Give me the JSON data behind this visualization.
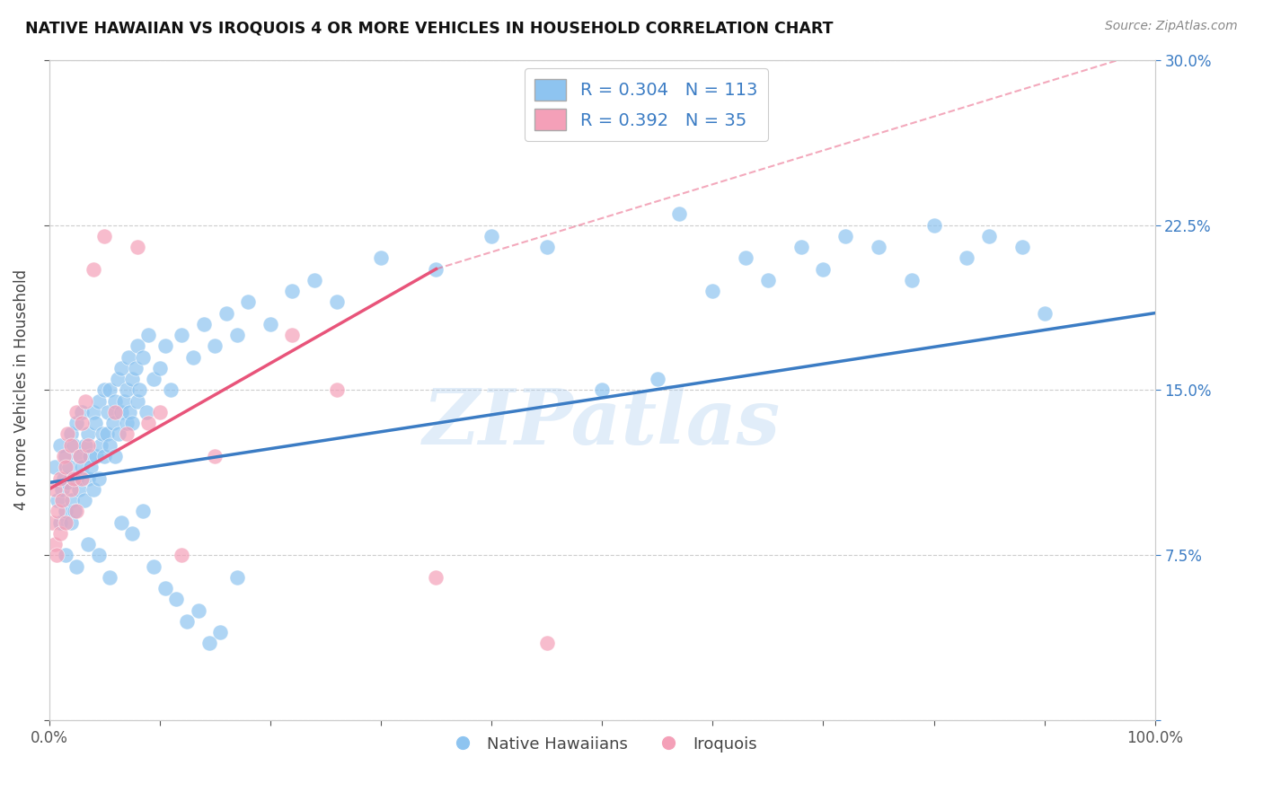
{
  "title": "NATIVE HAWAIIAN VS IROQUOIS 4 OR MORE VEHICLES IN HOUSEHOLD CORRELATION CHART",
  "source": "Source: ZipAtlas.com",
  "ylabel": "4 or more Vehicles in Household",
  "watermark": "ZIPatlas",
  "legend_blue_R": "0.304",
  "legend_blue_N": "113",
  "legend_pink_R": "0.392",
  "legend_pink_N": "35",
  "legend_label1": "Native Hawaiians",
  "legend_label2": "Iroquois",
  "xlim": [
    0,
    100
  ],
  "ylim": [
    0,
    30
  ],
  "blue_color": "#8EC4F0",
  "pink_color": "#F4A0B8",
  "blue_line_color": "#3B7CC4",
  "pink_line_color": "#E8547A",
  "legend_text_color": "#3B7CC4",
  "grid_color": "#C8C8C8",
  "background_color": "#FFFFFF",
  "blue_points_x": [
    0.5,
    0.8,
    1.0,
    1.0,
    1.2,
    1.3,
    1.5,
    1.5,
    1.7,
    1.8,
    2.0,
    2.0,
    2.1,
    2.2,
    2.3,
    2.5,
    2.5,
    2.7,
    2.8,
    3.0,
    3.0,
    3.2,
    3.3,
    3.5,
    3.5,
    3.7,
    3.8,
    4.0,
    4.0,
    4.2,
    4.3,
    4.5,
    4.5,
    4.7,
    4.8,
    5.0,
    5.0,
    5.2,
    5.3,
    5.5,
    5.5,
    5.8,
    6.0,
    6.0,
    6.2,
    6.3,
    6.5,
    6.5,
    6.8,
    7.0,
    7.0,
    7.2,
    7.3,
    7.5,
    7.5,
    7.8,
    8.0,
    8.0,
    8.2,
    8.5,
    8.8,
    9.0,
    9.5,
    10.0,
    10.5,
    11.0,
    12.0,
    13.0,
    14.0,
    15.0,
    16.0,
    17.0,
    18.0,
    20.0,
    22.0,
    24.0,
    26.0,
    30.0,
    35.0,
    40.0,
    45.0,
    50.0,
    55.0,
    57.0,
    60.0,
    63.0,
    65.0,
    68.0,
    70.0,
    72.0,
    75.0,
    78.0,
    80.0,
    83.0,
    85.0,
    88.0,
    90.0,
    1.5,
    2.5,
    3.5,
    4.5,
    5.5,
    6.5,
    7.5,
    8.5,
    9.5,
    10.5,
    11.5,
    12.5,
    13.5,
    14.5,
    15.5,
    17.0
  ],
  "blue_points_y": [
    11.5,
    10.0,
    9.0,
    12.5,
    10.5,
    11.0,
    9.5,
    12.0,
    10.8,
    11.5,
    9.0,
    13.0,
    10.0,
    12.5,
    9.5,
    11.0,
    13.5,
    10.5,
    12.0,
    11.5,
    14.0,
    10.0,
    12.5,
    11.0,
    13.0,
    12.0,
    11.5,
    14.0,
    10.5,
    13.5,
    12.0,
    11.0,
    14.5,
    12.5,
    13.0,
    12.0,
    15.0,
    13.0,
    14.0,
    12.5,
    15.0,
    13.5,
    14.5,
    12.0,
    15.5,
    13.0,
    14.0,
    16.0,
    14.5,
    13.5,
    15.0,
    16.5,
    14.0,
    15.5,
    13.5,
    16.0,
    14.5,
    17.0,
    15.0,
    16.5,
    14.0,
    17.5,
    15.5,
    16.0,
    17.0,
    15.0,
    17.5,
    16.5,
    18.0,
    17.0,
    18.5,
    17.5,
    19.0,
    18.0,
    19.5,
    20.0,
    19.0,
    21.0,
    20.5,
    22.0,
    21.5,
    15.0,
    15.5,
    23.0,
    19.5,
    21.0,
    20.0,
    21.5,
    20.5,
    22.0,
    21.5,
    20.0,
    22.5,
    21.0,
    22.0,
    21.5,
    18.5,
    7.5,
    7.0,
    8.0,
    7.5,
    6.5,
    9.0,
    8.5,
    9.5,
    7.0,
    6.0,
    5.5,
    4.5,
    5.0,
    3.5,
    4.0,
    6.5
  ],
  "pink_points_x": [
    0.3,
    0.5,
    0.5,
    0.7,
    0.8,
    1.0,
    1.0,
    1.2,
    1.3,
    1.5,
    1.5,
    1.7,
    2.0,
    2.0,
    2.2,
    2.5,
    2.5,
    2.8,
    3.0,
    3.0,
    3.3,
    3.5,
    4.0,
    5.0,
    6.0,
    7.0,
    8.0,
    9.0,
    10.0,
    12.0,
    15.0,
    22.0,
    26.0,
    35.0,
    45.0
  ],
  "pink_points_y": [
    9.0,
    8.0,
    10.5,
    7.5,
    9.5,
    8.5,
    11.0,
    10.0,
    12.0,
    11.5,
    9.0,
    13.0,
    10.5,
    12.5,
    11.0,
    14.0,
    9.5,
    12.0,
    13.5,
    11.0,
    14.5,
    12.5,
    20.5,
    22.0,
    14.0,
    13.0,
    21.5,
    13.5,
    14.0,
    7.5,
    12.0,
    17.5,
    15.0,
    6.5,
    3.5
  ],
  "blue_trend_start_x": 0,
  "blue_trend_end_x": 100,
  "blue_trend_start_y": 10.8,
  "blue_trend_end_y": 18.5,
  "pink_trend_start_x": 0,
  "pink_trend_solid_end_x": 35,
  "pink_trend_dashed_end_x": 100,
  "pink_trend_start_y": 10.5,
  "pink_trend_solid_end_y": 20.5,
  "pink_trend_dashed_end_y": 30.5
}
